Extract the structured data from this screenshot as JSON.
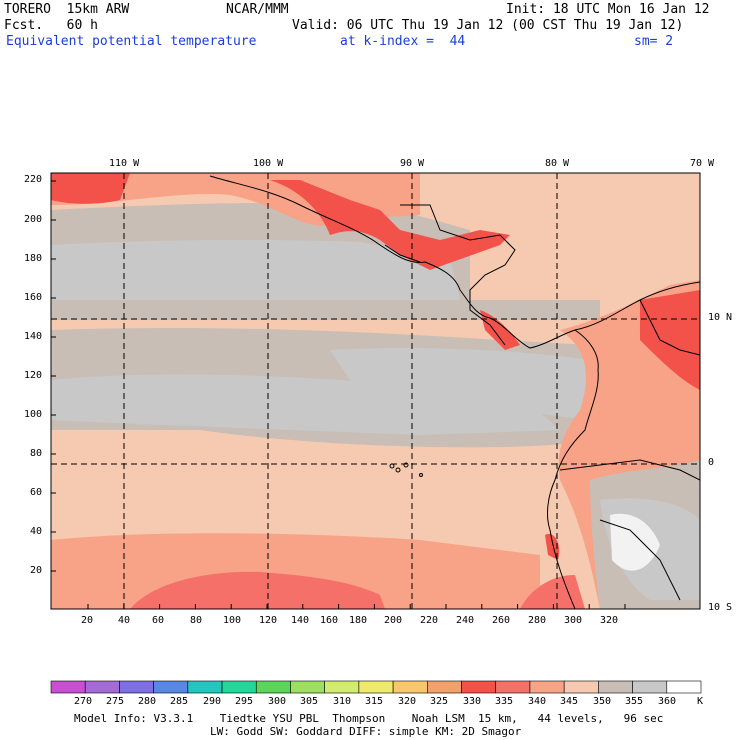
{
  "header": {
    "model": "TORERO  15km ARW",
    "org": "NCAR/MMM",
    "init": "Init: 18 UTC Mon 16 Jan 12",
    "fcst": "Fcst.   60 h",
    "valid": "Valid: 06 UTC Thu 19 Jan 12 (00 CST Thu 19 Jan 12)",
    "field": "Equivalent potential temperature",
    "level": "at k-index =  44",
    "smooth": "sm= 2"
  },
  "map": {
    "lon_labels": [
      "110 W",
      "100 W",
      "90 W",
      "80 W",
      "70 W"
    ],
    "lat_labels": [
      "10 N",
      "0",
      "10 S"
    ],
    "x_ticks": [
      "20",
      "40",
      "60",
      "80",
      "100",
      "120",
      "140",
      "160",
      "180",
      "200",
      "220",
      "240",
      "260",
      "280",
      "300",
      "320"
    ],
    "y_ticks": [
      "220",
      "200",
      "180",
      "160",
      "140",
      "120",
      "100",
      "80",
      "60",
      "40",
      "20"
    ]
  },
  "colorbar": {
    "labels": [
      "270",
      "275",
      "280",
      "285",
      "290",
      "295",
      "300",
      "305",
      "310",
      "315",
      "320",
      "325",
      "330",
      "335",
      "340",
      "345",
      "350",
      "355",
      "360"
    ],
    "unit": "K",
    "colors": [
      "#c84fd0",
      "#a46ad8",
      "#7f6fe6",
      "#5a86e6",
      "#25c6c0",
      "#25d69a",
      "#5ad65a",
      "#9ee05e",
      "#d2ec6c",
      "#f0ea6a",
      "#f6c86a",
      "#f4a06c",
      "#f2524a",
      "#f6706a",
      "#f8a288",
      "#f6cab0",
      "#c9beb6",
      "#c8c8c8",
      "#ffffff"
    ]
  },
  "footer": {
    "line1": "Model Info: V3.3.1    Tiedtke YSU PBL  Thompson    Noah LSM  15 km,   44 levels,   96 sec",
    "line2": "LW: Godd SW: Goddard DIFF: simple KM: 2D Smagor"
  }
}
